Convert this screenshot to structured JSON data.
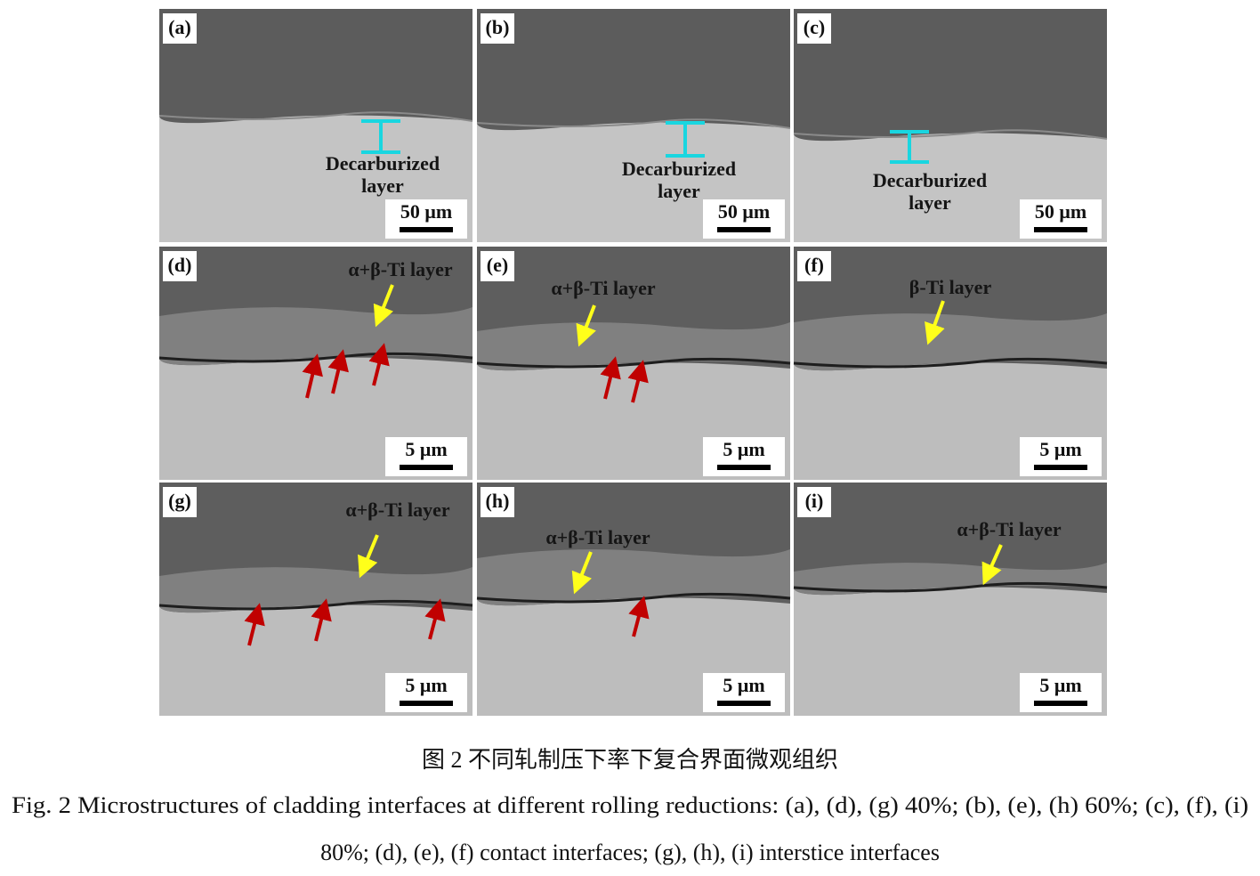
{
  "figure": {
    "panels": [
      {
        "label": "(a)",
        "annotation": [
          "Decarburized",
          "layer"
        ],
        "scale_bar": "50 μm"
      },
      {
        "label": "(b)",
        "annotation": [
          "Decarburized",
          "layer"
        ],
        "scale_bar": "50 μm"
      },
      {
        "label": "(c)",
        "annotation": [
          "Decarburized",
          "layer"
        ],
        "scale_bar": "50 μm"
      },
      {
        "label": "(d)",
        "annotation": [
          "α+β-Ti layer"
        ],
        "scale_bar": "5 μm"
      },
      {
        "label": "(e)",
        "annotation": [
          "α+β-Ti layer"
        ],
        "scale_bar": "5 μm"
      },
      {
        "label": "(f)",
        "annotation": [
          "β-Ti layer"
        ],
        "scale_bar": "5 μm"
      },
      {
        "label": "(g)",
        "annotation": [
          "α+β-Ti layer"
        ],
        "scale_bar": "5 μm"
      },
      {
        "label": "(h)",
        "annotation": [
          "α+β-Ti layer"
        ],
        "scale_bar": "5 μm"
      },
      {
        "label": "(i)",
        "annotation": [
          "α+β-Ti layer"
        ],
        "scale_bar": "5 μm"
      }
    ],
    "caption_cn": "图 2  不同轧制压下率下复合界面微观组织",
    "caption_en": [
      "Fig. 2 Microstructures of cladding interfaces at different rolling reductions: (a), (d), (g) 40%; (b), (e), (h) 60%; (c), (f), (i)",
      "80%; (d), (e), (f) contact interfaces; (g), (h), (i) interstice interfaces"
    ]
  }
}
